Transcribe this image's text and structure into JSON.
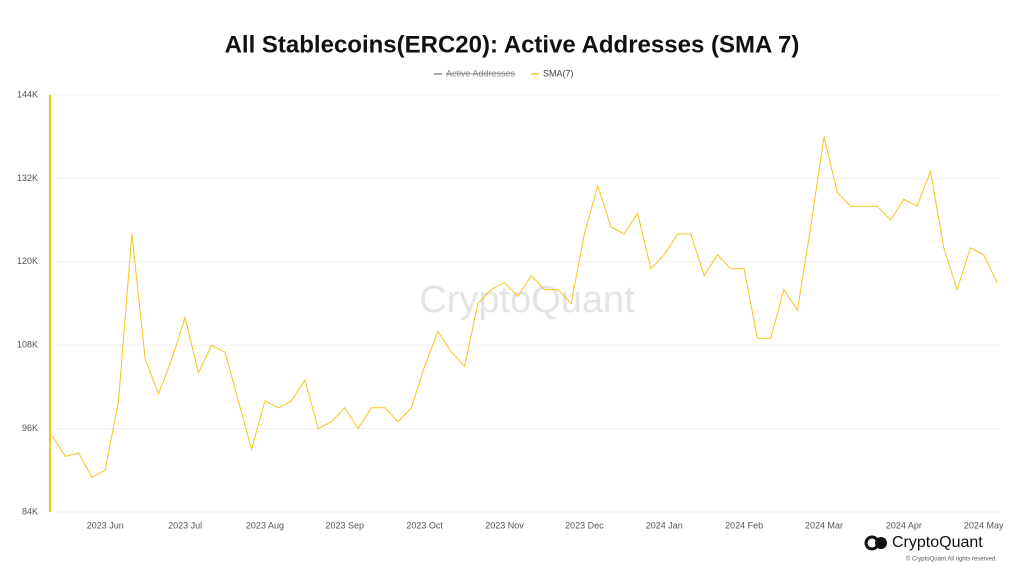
{
  "chart_data": {
    "type": "line",
    "title": "All Stablecoins(ERC20): Active Addresses (SMA 7)",
    "categories": [
      null,
      null,
      null,
      null,
      "2023 Jun",
      null,
      null,
      null,
      null,
      null,
      "2023 Jul",
      null,
      null,
      null,
      null,
      null,
      "2023 Aug",
      null,
      null,
      null,
      null,
      null,
      "2023 Sep",
      null,
      null,
      null,
      null,
      null,
      "2023 Oct",
      null,
      null,
      null,
      null,
      null,
      "2023 Nov",
      null,
      null,
      null,
      null,
      null,
      "2023 Dec",
      null,
      null,
      null,
      null,
      null,
      "2024 Jan",
      null,
      null,
      null,
      null,
      null,
      "2024 Feb",
      null,
      null,
      null,
      null,
      null,
      "2024 Mar",
      null,
      null,
      null,
      null,
      null,
      "2024 Apr",
      null,
      null,
      null,
      null,
      null,
      "2024 May",
      null
    ],
    "series": [
      {
        "name": "Active Addresses",
        "color": "#8a8a8a",
        "hidden": true,
        "values": [
          null,
          null,
          null,
          null,
          null,
          null,
          null,
          null,
          null,
          null,
          null,
          null,
          null,
          null,
          null,
          null,
          null,
          null,
          null,
          null,
          null,
          null,
          null,
          null,
          null,
          null,
          null,
          null,
          null,
          null,
          null,
          null,
          null,
          null,
          null,
          null,
          null,
          null,
          null,
          null,
          null,
          null,
          null,
          null,
          null,
          null,
          null,
          null,
          null,
          null,
          null,
          null,
          null,
          null,
          null,
          null,
          null,
          null,
          null,
          null,
          null,
          null,
          null,
          null,
          null,
          null,
          null,
          null,
          null,
          null,
          null,
          null
        ]
      },
      {
        "name": "SMA(7)",
        "color": "#f5c518",
        "values": [
          95000,
          92000,
          92500,
          89000,
          90000,
          100000,
          124000,
          106000,
          101000,
          106000,
          112000,
          104000,
          108000,
          107000,
          100000,
          93000,
          100000,
          99000,
          100000,
          103000,
          96000,
          97000,
          99000,
          96000,
          99000,
          99000,
          97000,
          99000,
          105000,
          110000,
          107000,
          105000,
          114000,
          116000,
          117000,
          115000,
          118000,
          116000,
          116000,
          114000,
          124000,
          131000,
          125000,
          124000,
          127000,
          119000,
          121000,
          124000,
          124000,
          118000,
          121000,
          119000,
          119000,
          109000,
          109000,
          116000,
          113000,
          125000,
          138000,
          130000,
          128000,
          128000,
          128000,
          126000,
          129000,
          128000,
          133000,
          122000,
          116000,
          122000,
          121000,
          117000
        ]
      }
    ],
    "ylim": [
      84000,
      144000
    ],
    "yticks": [
      {
        "value": 84000,
        "label": "84K"
      },
      {
        "value": 96000,
        "label": "96K"
      },
      {
        "value": 108000,
        "label": "108K"
      },
      {
        "value": 120000,
        "label": "120K"
      },
      {
        "value": 132000,
        "label": "132K"
      },
      {
        "value": 144000,
        "label": "144K"
      }
    ],
    "grid": true,
    "watermark": "CryptoQuant",
    "brand": "CryptoQuant",
    "copyright": "© CryptoQuant All rights reserved."
  }
}
